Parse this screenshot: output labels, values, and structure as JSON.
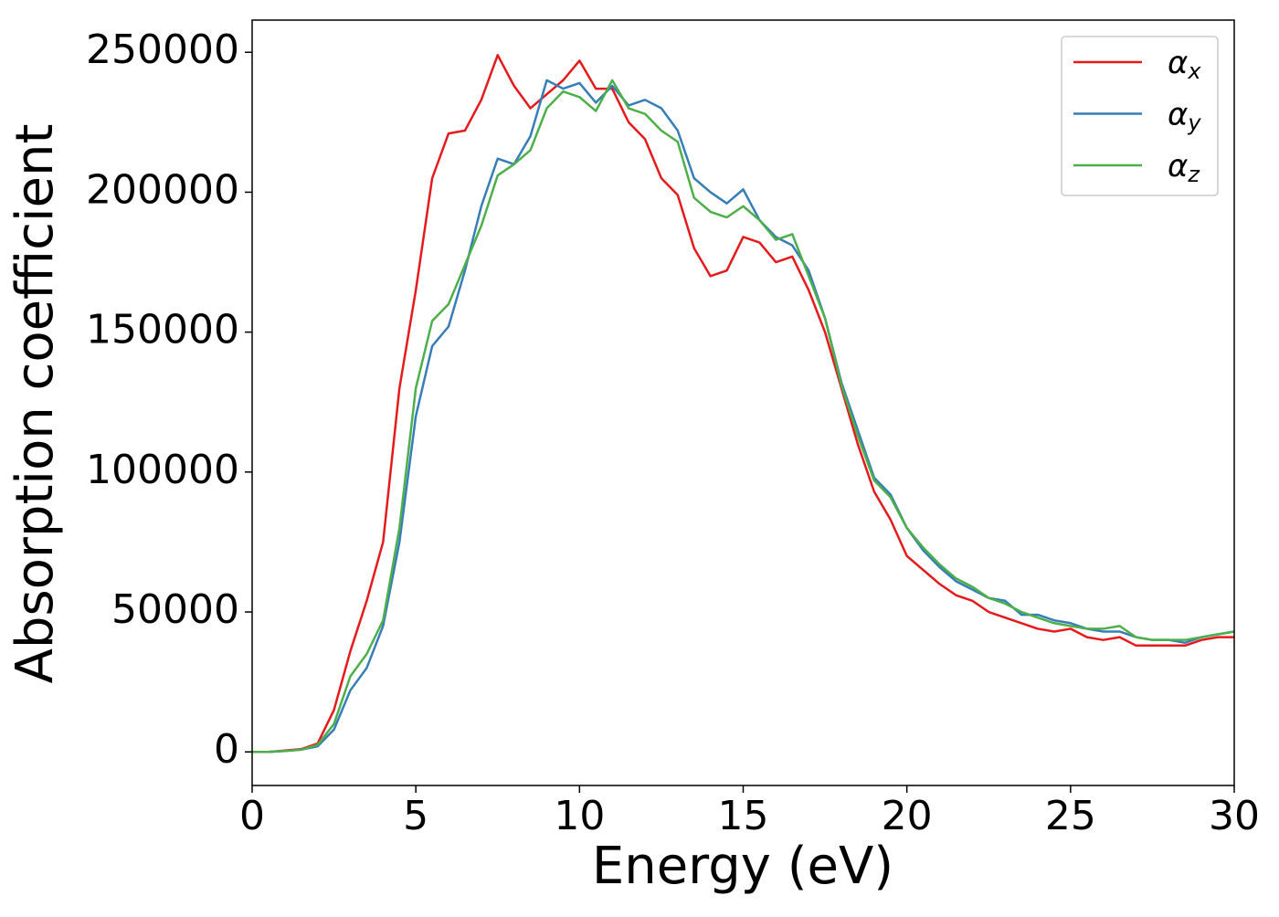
{
  "chart_data": {
    "type": "line",
    "xlabel": "Energy (eV)",
    "ylabel": "Absorption coefficient",
    "x": [
      0,
      0.5,
      1,
      1.5,
      2,
      2.5,
      3,
      3.5,
      4,
      4.5,
      5,
      5.5,
      6,
      6.5,
      7,
      7.5,
      8,
      8.5,
      9,
      9.5,
      10,
      10.5,
      11,
      11.5,
      12,
      12.5,
      13,
      13.5,
      14,
      14.5,
      15,
      15.5,
      16,
      16.5,
      17,
      17.5,
      18,
      18.5,
      19,
      19.5,
      20,
      20.5,
      21,
      21.5,
      22,
      22.5,
      23,
      23.5,
      24,
      24.5,
      25,
      25.5,
      26,
      26.5,
      27,
      27.5,
      28,
      28.5,
      29,
      29.5,
      30
    ],
    "series": [
      {
        "name": "αx",
        "color": "#e41a1c",
        "values": [
          0,
          0,
          500,
          1000,
          3000,
          15000,
          36000,
          54000,
          75000,
          130000,
          165000,
          205000,
          221000,
          222000,
          233000,
          249000,
          238000,
          230000,
          235000,
          240000,
          247000,
          237000,
          237000,
          225000,
          219000,
          205000,
          199000,
          180000,
          170000,
          172000,
          184000,
          182000,
          175000,
          177000,
          165000,
          150000,
          130000,
          110000,
          93000,
          83000,
          70000,
          65000,
          60000,
          56000,
          54000,
          50000,
          48000,
          46000,
          44000,
          43000,
          44000,
          41000,
          40000,
          41000,
          38000,
          38000,
          38000,
          38000,
          40000,
          41000,
          41000
        ]
      },
      {
        "name": "αy",
        "color": "#377eb8",
        "values": [
          0,
          0,
          300,
          800,
          2000,
          8000,
          22000,
          30000,
          45000,
          75000,
          120000,
          145000,
          152000,
          172000,
          195000,
          212000,
          210000,
          220000,
          240000,
          237000,
          239000,
          232000,
          238000,
          231000,
          233000,
          230000,
          222000,
          205000,
          200000,
          196000,
          201000,
          190000,
          184000,
          181000,
          172000,
          155000,
          132000,
          115000,
          98000,
          92000,
          80000,
          72000,
          66000,
          61000,
          58000,
          55000,
          54000,
          49000,
          49000,
          47000,
          46000,
          44000,
          43000,
          43000,
          41000,
          40000,
          40000,
          39000,
          41000,
          42000,
          43000
        ]
      },
      {
        "name": "αz",
        "color": "#4daf4a",
        "values": [
          0,
          0,
          300,
          800,
          2500,
          10000,
          27000,
          35000,
          47000,
          80000,
          130000,
          154000,
          160000,
          174000,
          188000,
          206000,
          210000,
          215000,
          230000,
          236000,
          234000,
          229000,
          240000,
          230000,
          228000,
          222000,
          218000,
          198000,
          193000,
          191000,
          195000,
          190000,
          183000,
          185000,
          170000,
          155000,
          131000,
          113000,
          97000,
          91000,
          80000,
          73000,
          67000,
          62000,
          59000,
          55000,
          53000,
          50000,
          48000,
          46000,
          45000,
          44000,
          44000,
          45000,
          41000,
          40000,
          40000,
          40000,
          41000,
          42000,
          43000
        ]
      }
    ],
    "xlim": [
      0,
      30
    ],
    "ylim": [
      -12000,
      261500
    ],
    "xticks": [
      0,
      5,
      10,
      15,
      20,
      25,
      30
    ],
    "yticks": [
      0,
      50000,
      100000,
      150000,
      200000,
      250000
    ],
    "grid": false,
    "legend": "upper right"
  }
}
